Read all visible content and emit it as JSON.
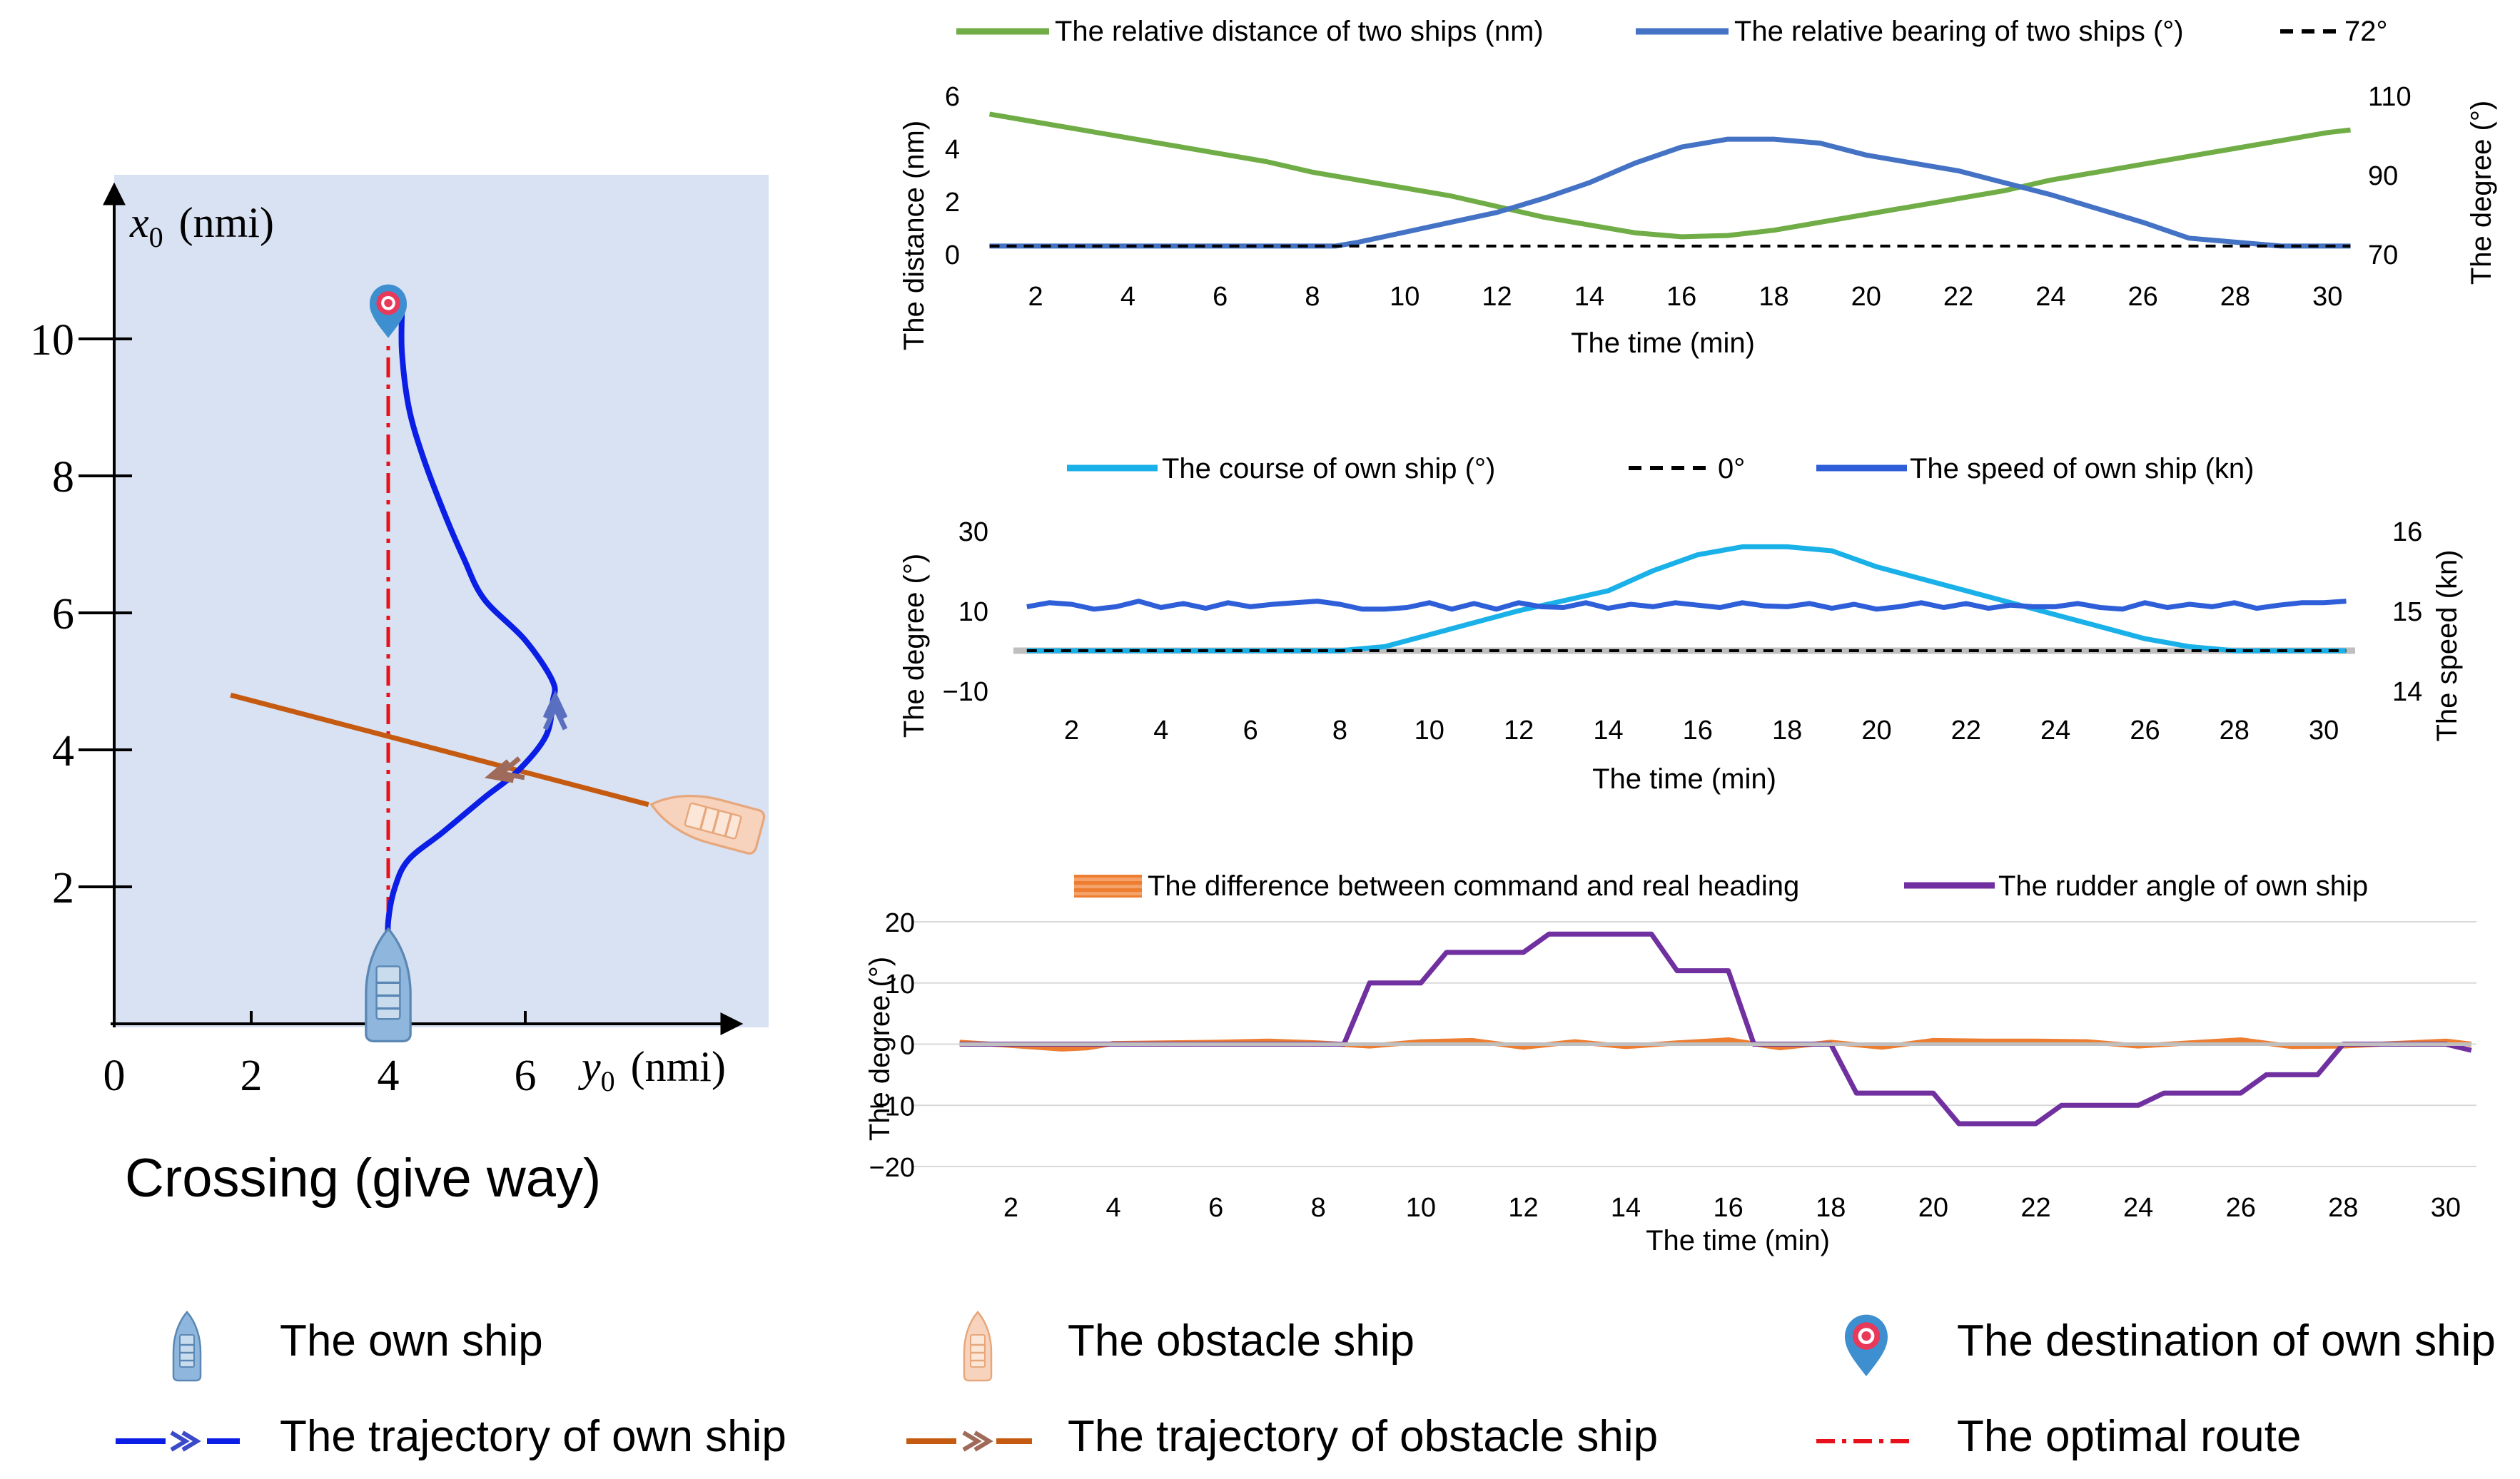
{
  "scenario_title": "Crossing (give way)",
  "chart_data": [
    {
      "id": "map",
      "type": "line",
      "xlabel_var": "y",
      "xlabel_sub": "0",
      "xlabel_unit": "(nmi)",
      "ylabel_var": "x",
      "ylabel_sub": "0",
      "ylabel_unit": "(nmi)",
      "xlim": [
        0,
        9.5
      ],
      "ylim": [
        0,
        12.5
      ],
      "x_ticks": [
        "0",
        "2",
        "4",
        "6"
      ],
      "y_ticks": [
        "2",
        "4",
        "6",
        "8",
        "10"
      ],
      "series": [
        {
          "name": "The trajectory of own ship",
          "points": [
            [
              4.0,
              1.0
            ],
            [
              4.0,
              1.5
            ],
            [
              4.1,
              2.0
            ],
            [
              4.3,
              2.4
            ],
            [
              4.8,
              2.8
            ],
            [
              5.4,
              3.3
            ],
            [
              5.9,
              3.7
            ],
            [
              6.3,
              4.2
            ],
            [
              6.4,
              4.7
            ],
            [
              6.4,
              5.0
            ],
            [
              6.0,
              5.6
            ],
            [
              5.4,
              6.2
            ],
            [
              5.1,
              6.8
            ],
            [
              4.8,
              7.5
            ],
            [
              4.5,
              8.3
            ],
            [
              4.3,
              9.0
            ],
            [
              4.2,
              9.8
            ],
            [
              4.2,
              10.4
            ]
          ]
        },
        {
          "name": "The trajectory of obstacle ship",
          "points": [
            [
              1.7,
              4.8
            ],
            [
              7.8,
              3.2
            ]
          ]
        },
        {
          "name": "The optimal route",
          "points": [
            [
              4.0,
              1.0
            ],
            [
              4.0,
              10.0
            ]
          ]
        }
      ],
      "destination": [
        4.0,
        10.7
      ],
      "own_ship_start": [
        4.0,
        0.6
      ],
      "obstacle_ship_start": [
        8.6,
        3.0
      ]
    },
    {
      "id": "distance_bearing",
      "type": "line",
      "title": "",
      "xlabel": "The time (min)",
      "ylabel": "The distance (nm)",
      "ylabel_right": "The degree (°)",
      "xlim": [
        0.9,
        30.6
      ],
      "ylim": [
        0,
        6
      ],
      "ylim_right": [
        70,
        110
      ],
      "x_ticks": [
        2,
        4,
        6,
        8,
        10,
        12,
        14,
        16,
        18,
        20,
        22,
        24,
        26,
        28,
        30
      ],
      "y_ticks": [
        0,
        2,
        4,
        6
      ],
      "y_ticks_right": [
        70,
        90,
        110
      ],
      "legend": [
        "The relative distance of two ships (nm)",
        "The relative bearing of two ships (°)",
        "72°"
      ],
      "series": [
        {
          "name": "The relative distance of two ships (nm)",
          "axis": "left",
          "color": "#70ad47",
          "x": [
            1,
            2,
            3,
            4,
            5,
            6,
            7,
            8,
            9,
            10,
            11,
            12,
            13,
            14,
            15,
            16,
            17,
            18,
            19,
            20,
            21,
            22,
            23,
            24,
            25,
            26,
            27,
            28,
            29,
            30,
            30.5
          ],
          "values": [
            5.3,
            5.0,
            4.7,
            4.4,
            4.1,
            3.8,
            3.5,
            3.1,
            2.8,
            2.5,
            2.2,
            1.8,
            1.4,
            1.1,
            0.8,
            0.65,
            0.7,
            0.9,
            1.2,
            1.5,
            1.8,
            2.1,
            2.4,
            2.8,
            3.1,
            3.4,
            3.7,
            4.0,
            4.3,
            4.6,
            4.7
          ]
        },
        {
          "name": "The relative bearing of two ships (°)",
          "axis": "right",
          "color": "#4472c4",
          "x": [
            1,
            2,
            3,
            4,
            5,
            6,
            7,
            8,
            8.5,
            9,
            10,
            11,
            12,
            13,
            14,
            15,
            16,
            17,
            18,
            19,
            20,
            21,
            22,
            23,
            24,
            25,
            26,
            27,
            28,
            29,
            30,
            30.5
          ],
          "values": [
            72,
            72,
            72,
            72,
            72,
            72,
            72,
            72,
            72,
            73,
            75.5,
            78,
            80.5,
            84,
            88,
            93,
            97,
            99,
            99,
            98,
            95,
            93,
            91,
            88,
            85,
            81.5,
            78,
            74,
            73,
            72,
            72,
            72
          ]
        },
        {
          "name": "72°",
          "axis": "right",
          "color": "#000000",
          "dash": true,
          "x": [
            1,
            30.5
          ],
          "values": [
            72,
            72
          ]
        }
      ]
    },
    {
      "id": "course_speed",
      "type": "line",
      "xlabel": "The time (min)",
      "ylabel": "The degree (°)",
      "ylabel_right": "The speed (kn)",
      "xlim": [
        0.7,
        30.7
      ],
      "ylim": [
        -10,
        30
      ],
      "ylim_right": [
        14,
        16
      ],
      "x_ticks": [
        2,
        4,
        6,
        8,
        10,
        12,
        14,
        16,
        18,
        20,
        22,
        24,
        26,
        28,
        30
      ],
      "y_ticks": [
        -10,
        10,
        30
      ],
      "y_ticks_right": [
        14,
        15,
        16
      ],
      "legend": [
        "The course of own ship (°)",
        "0°",
        "The speed of own ship (kn)"
      ],
      "series": [
        {
          "name": "The course of own ship (°)",
          "axis": "left",
          "color": "#1ab0e8",
          "x": [
            1,
            2,
            3,
            4,
            5,
            6,
            7,
            8,
            9,
            10,
            11,
            12,
            13,
            14,
            15,
            16,
            17,
            18,
            19,
            20,
            21,
            22,
            23,
            24,
            25,
            26,
            27,
            28,
            29,
            30,
            30.5
          ],
          "values": [
            0,
            0,
            0,
            0,
            0,
            0,
            0,
            0,
            1,
            4,
            7,
            10,
            12.5,
            15,
            20,
            24,
            26,
            26,
            25,
            21,
            18,
            15,
            12,
            9,
            6,
            3,
            1,
            0,
            0,
            0,
            0
          ]
        },
        {
          "name": "0°",
          "axis": "left",
          "color": "#000000",
          "dash": true,
          "x": [
            1,
            30.5
          ],
          "values": [
            0,
            0
          ]
        },
        {
          "name": "The speed of own ship (kn)",
          "axis": "right",
          "color": "#2e5fd8",
          "x": [
            1,
            1.5,
            2,
            2.5,
            3,
            3.5,
            4,
            4.5,
            5,
            5.5,
            6,
            6.5,
            7,
            7.5,
            8,
            8.5,
            9,
            9.5,
            10,
            10.5,
            11,
            11.5,
            12,
            12.5,
            13,
            13.5,
            14,
            14.5,
            15,
            15.5,
            16,
            16.5,
            17,
            17.5,
            18,
            18.5,
            19,
            19.5,
            20,
            20.5,
            21,
            21.5,
            22,
            22.5,
            23,
            23.5,
            24,
            24.5,
            25,
            25.5,
            26,
            26.5,
            27,
            27.5,
            28,
            28.5,
            29,
            29.5,
            30,
            30.5
          ],
          "values": [
            15.05,
            15.1,
            15.08,
            15.02,
            15.05,
            15.12,
            15.04,
            15.09,
            15.03,
            15.1,
            15.05,
            15.08,
            15.1,
            15.12,
            15.08,
            15.02,
            15.02,
            15.04,
            15.1,
            15.02,
            15.09,
            15.02,
            15.1,
            15.05,
            15.04,
            15.1,
            15.03,
            15.08,
            15.05,
            15.1,
            15.07,
            15.04,
            15.1,
            15.06,
            15.05,
            15.09,
            15.03,
            15.08,
            15.02,
            15.05,
            15.1,
            15.04,
            15.09,
            15.03,
            15.07,
            15.05,
            15.05,
            15.09,
            15.04,
            15.02,
            15.1,
            15.04,
            15.08,
            15.05,
            15.1,
            15.03,
            15.07,
            15.1,
            15.1,
            15.12
          ]
        }
      ]
    },
    {
      "id": "heading_rudder",
      "type": "line",
      "xlabel": "The time (min)",
      "ylabel": "The degree (°)",
      "xlim": [
        0.1,
        30.6
      ],
      "ylim": [
        -20,
        20
      ],
      "x_ticks": [
        2,
        4,
        6,
        8,
        10,
        12,
        14,
        16,
        18,
        20,
        22,
        24,
        26,
        28,
        30
      ],
      "y_ticks": [
        -20,
        -10,
        0,
        10,
        20
      ],
      "legend": [
        "The difference between command and real heading",
        "The rudder angle of own ship"
      ],
      "series": [
        {
          "name": "The difference between command and real heading",
          "color": "#ed7d31",
          "x": [
            1,
            2,
            3,
            3.5,
            4,
            5,
            6,
            7,
            8,
            9,
            10,
            11,
            12,
            13,
            14,
            15,
            16,
            17,
            18,
            19,
            20,
            21,
            22,
            23,
            24,
            25,
            26,
            27,
            28,
            29,
            30,
            30.5
          ],
          "values": [
            0.3,
            -0.2,
            -0.8,
            -0.6,
            0.1,
            0.2,
            0.3,
            0.5,
            0.2,
            -0.3,
            0.4,
            0.6,
            -0.5,
            0.4,
            -0.4,
            0.2,
            0.7,
            -0.6,
            0.3,
            -0.5,
            0.6,
            0.5,
            0.5,
            0.4,
            -0.3,
            0.2,
            0.7,
            -0.4,
            -0.3,
            0.1,
            0.5,
            0
          ]
        },
        {
          "name": "The rudder angle of own ship",
          "color": "#7030a0",
          "x": [
            1,
            8.5,
            9,
            10,
            10.5,
            11,
            12,
            12.5,
            13,
            14,
            14.5,
            15,
            16,
            16.5,
            18,
            18.5,
            19,
            20,
            20.5,
            21,
            22,
            22.5,
            23,
            24,
            24.5,
            25,
            26,
            26.5,
            27,
            27.5,
            28,
            29,
            30,
            30.5
          ],
          "values": [
            0,
            0,
            10,
            10,
            15,
            15,
            15,
            18,
            18,
            18,
            18,
            12,
            12,
            0,
            0,
            -8,
            -8,
            -8,
            -13,
            -13,
            -13,
            -10,
            -10,
            -10,
            -8,
            -8,
            -8,
            -5,
            -5,
            -5,
            0,
            0,
            0,
            -1
          ]
        },
        {
          "name": "zero",
          "color": "#bfbfbf",
          "x": [
            1,
            30.5
          ],
          "values": [
            0,
            0
          ]
        }
      ]
    }
  ],
  "bottom_legend": {
    "own_ship": "The own ship",
    "obstacle_ship": "The obstacle ship",
    "destination": "The destination of own ship",
    "own_traj": "The trajectory of own ship",
    "obstacle_traj": "The trajectory of obstacle ship",
    "optimal_route": "The optimal route"
  },
  "colors": {
    "map_bg": "#d9e2f3",
    "own_traj": "#0a1ee6",
    "obstacle_traj": "#c55a11",
    "optimal_route": "#e8101a",
    "distance": "#70ad47",
    "bearing": "#4472c4",
    "course": "#1ab0e8",
    "speed": "#2e5fd8",
    "heading_diff": "#ed7d31",
    "rudder": "#7030a0"
  }
}
